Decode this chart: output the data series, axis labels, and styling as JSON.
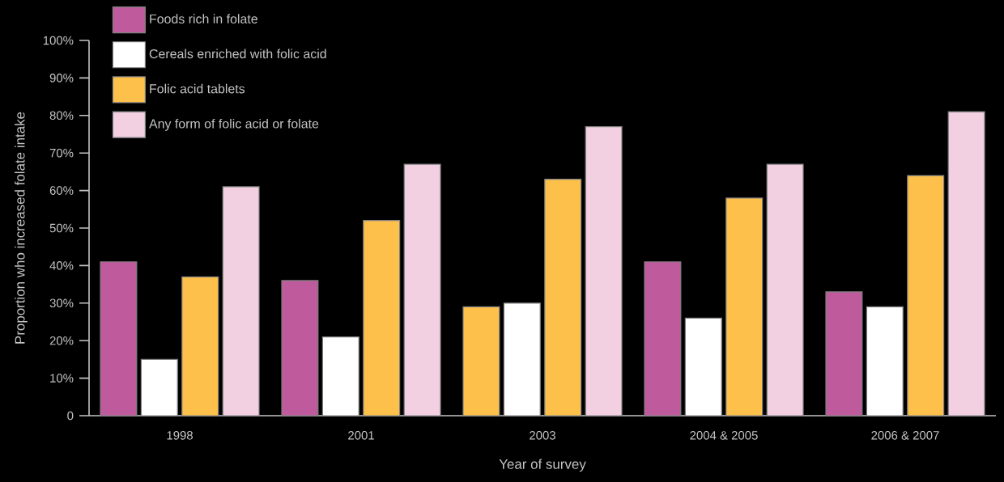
{
  "chart_data": {
    "type": "bar",
    "xlabel": "Year of survey",
    "ylabel": "Proportion who increased folate intake",
    "categories": [
      "1998",
      "2001",
      "2003",
      "2004 & 2005",
      "2006 & 2007"
    ],
    "series": [
      {
        "name": "Foods rich in folate",
        "color": "#bf5a9c",
        "colors": [
          "#bf5a9c",
          "#bf5a9c",
          "#fdc04b",
          "#bf5a9c",
          "#bf5a9c"
        ],
        "values": [
          41,
          36,
          29,
          41,
          33
        ]
      },
      {
        "name": "Cereals enriched with folic acid",
        "color": "#ffffff",
        "values": [
          15,
          21,
          30,
          26,
          29
        ]
      },
      {
        "name": "Folic acid tablets",
        "color": "#fdc04b",
        "values": [
          37,
          52,
          63,
          58,
          64
        ]
      },
      {
        "name": "Any form of folic acid or folate",
        "color": "#f2d0e2",
        "values": [
          61,
          67,
          77,
          67,
          81
        ]
      }
    ],
    "ylim": [
      0,
      100
    ],
    "yticks": [
      0,
      {
        "value": 10,
        "label": "10%"
      },
      {
        "value": 20,
        "label": "20%"
      },
      {
        "value": 30,
        "label": "30%"
      },
      {
        "value": 40,
        "label": "40%"
      },
      {
        "value": 50,
        "label": "50%"
      },
      {
        "value": 60,
        "label": "60%"
      },
      {
        "value": 70,
        "label": "70%"
      },
      {
        "value": 80,
        "label": "80%"
      },
      {
        "value": 90,
        "label": "90%"
      },
      {
        "value": 100,
        "label": "100%"
      }
    ],
    "grid": false,
    "legend": "top left"
  }
}
